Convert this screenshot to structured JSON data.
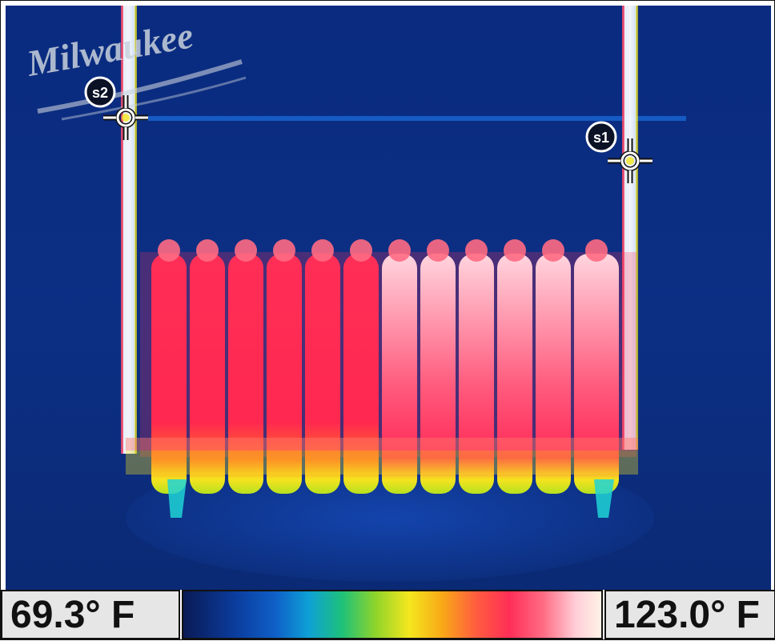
{
  "logo": {
    "text": "Milwaukee"
  },
  "spots": [
    {
      "label": "s2"
    },
    {
      "label": "s1"
    }
  ],
  "scale": {
    "min_label": "69.3° F",
    "max_label": "123.0° F"
  },
  "colors": {
    "background_blue": "#0b2a7a",
    "hot_red": "#ff2e57",
    "hot_white": "#ffe8e0",
    "cold_cyan": "#1fd3d6",
    "mid_yellow": "#f4e71e"
  },
  "icons": [
    "crosshair-icon",
    "crosshair-icon"
  ]
}
